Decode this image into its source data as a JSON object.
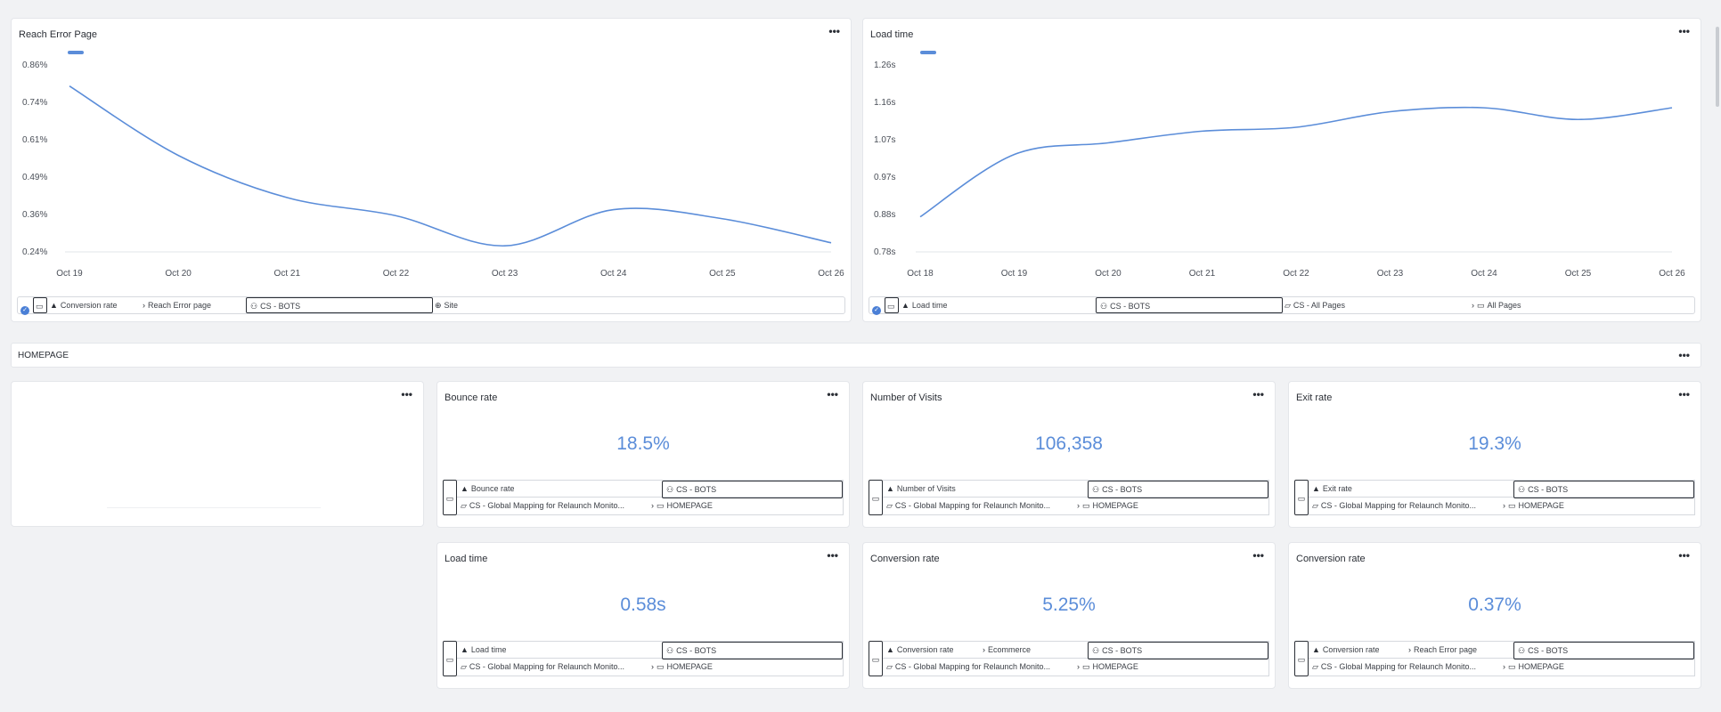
{
  "charts": [
    {
      "title": "Reach Error Page",
      "filters": {
        "metric": "Conversion rate",
        "submetric": "Reach Error page",
        "segment": "CS - BOTS",
        "scope": "Site"
      },
      "chart_data": {
        "type": "line",
        "x": [
          "Oct 19",
          "Oct 20",
          "Oct 21",
          "Oct 22",
          "Oct 23",
          "Oct 24",
          "Oct 25",
          "Oct 26"
        ],
        "y_ticks": [
          "0.86%",
          "0.74%",
          "0.61%",
          "0.49%",
          "0.36%",
          "0.24%"
        ],
        "ylim": [
          0.24,
          0.86
        ],
        "series": [
          {
            "values": [
              0.79,
              0.56,
              0.42,
              0.36,
              0.26,
              0.38,
              0.35,
              0.27
            ]
          }
        ],
        "color": "#5b8dd9"
      }
    },
    {
      "title": "Load time",
      "filters": {
        "metric": "Load time",
        "segment": "CS - BOTS",
        "scope": "CS - All Pages",
        "page": "All Pages"
      },
      "chart_data": {
        "type": "line",
        "x": [
          "Oct 18",
          "Oct 19",
          "Oct 20",
          "Oct 21",
          "Oct 22",
          "Oct 23",
          "Oct 24",
          "Oct 25",
          "Oct 26"
        ],
        "y_ticks": [
          "1.26s",
          "1.16s",
          "1.07s",
          "0.97s",
          "0.88s",
          "0.78s"
        ],
        "ylim": [
          0.78,
          1.26
        ],
        "series": [
          {
            "values": [
              0.87,
              1.03,
              1.06,
              1.09,
              1.1,
              1.14,
              1.15,
              1.12,
              1.15
            ]
          }
        ],
        "color": "#5b8dd9"
      }
    }
  ],
  "section": {
    "label": "HOMEPAGE"
  },
  "kpis": [
    {
      "title": "Bounce rate",
      "value": "18.5%",
      "metric": "Bounce rate",
      "submetric": "",
      "segment": "CS - BOTS",
      "mapping": "CS - Global Mapping for Relaunch Monito...",
      "page": "HOMEPAGE"
    },
    {
      "title": "Number of Visits",
      "value": "106,358",
      "metric": "Number of Visits",
      "submetric": "",
      "segment": "CS - BOTS",
      "mapping": "CS - Global Mapping for Relaunch Monito...",
      "page": "HOMEPAGE"
    },
    {
      "title": "Exit rate",
      "value": "19.3%",
      "metric": "Exit rate",
      "submetric": "",
      "segment": "CS - BOTS",
      "mapping": "CS - Global Mapping for Relaunch Monito...",
      "page": "HOMEPAGE"
    },
    {
      "title": "Load time",
      "value": "0.58s",
      "metric": "Load time",
      "submetric": "",
      "segment": "CS - BOTS",
      "mapping": "CS - Global Mapping for Relaunch Monito...",
      "page": "HOMEPAGE"
    },
    {
      "title": "Conversion rate",
      "value": "5.25%",
      "metric": "Conversion rate",
      "submetric": "Ecommerce",
      "segment": "CS - BOTS",
      "mapping": "CS - Global Mapping for Relaunch Monito...",
      "page": "HOMEPAGE"
    },
    {
      "title": "Conversion rate",
      "value": "0.37%",
      "metric": "Conversion rate",
      "submetric": "Reach Error page",
      "segment": "CS - BOTS",
      "mapping": "CS - Global Mapping for Relaunch Monito...",
      "page": "HOMEPAGE"
    }
  ],
  "menu_glyph": "•••",
  "icons": {
    "check": "check-icon",
    "device": "desktop-icon",
    "metric": "metric-icon",
    "segment": "user-icon",
    "scope": "globe-icon",
    "folder": "folder-icon",
    "page": "page-icon",
    "chevron": "chevron-right-icon"
  },
  "colors": {
    "accent": "#5b8dd9",
    "check": "#4a7fd6"
  }
}
